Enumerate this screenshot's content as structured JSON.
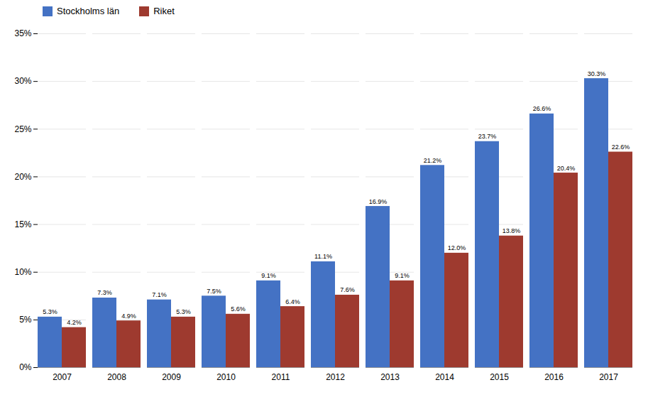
{
  "chart_data": {
    "type": "bar",
    "categories": [
      "2007",
      "2008",
      "2009",
      "2010",
      "2011",
      "2012",
      "2013",
      "2014",
      "2015",
      "2016",
      "2017"
    ],
    "series": [
      {
        "name": "Stockholms län",
        "color": "#4472C4",
        "values": [
          5.3,
          7.3,
          7.1,
          7.5,
          9.1,
          11.1,
          16.9,
          21.2,
          23.7,
          26.6,
          30.3
        ],
        "value_labels": [
          "5.3%",
          "7.3%",
          "7.1%",
          "7.5%",
          "9.1%",
          "11.1%",
          "16.9%",
          "21.2%",
          "23.7%",
          "26.6%",
          "30.3%"
        ]
      },
      {
        "name": "Riket",
        "color": "#9E3A2F",
        "values": [
          4.2,
          4.9,
          5.3,
          5.6,
          6.4,
          7.6,
          9.1,
          12.0,
          13.8,
          20.4,
          22.6
        ],
        "value_labels": [
          "4.2%",
          "4.9%",
          "5.3%",
          "5.6%",
          "6.4%",
          "7.6%",
          "9.1%",
          "12.0%",
          "13.8%",
          "20.4%",
          "22.6%"
        ]
      }
    ],
    "ylim": [
      0,
      35
    ],
    "yticks": [
      {
        "value": 0,
        "label": "0%"
      },
      {
        "value": 5,
        "label": "5%"
      },
      {
        "value": 10,
        "label": "10%"
      },
      {
        "value": 15,
        "label": "15%"
      },
      {
        "value": 20,
        "label": "20%"
      },
      {
        "value": 25,
        "label": "25%"
      },
      {
        "value": 30,
        "label": "30%"
      },
      {
        "value": 35,
        "label": "35%"
      }
    ],
    "grid": true,
    "legend": "upper left",
    "data_labels": true
  }
}
